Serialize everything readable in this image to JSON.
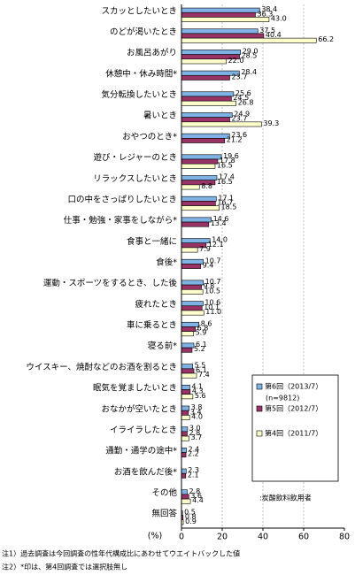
{
  "chart_data": {
    "type": "bar",
    "orientation": "horizontal",
    "categories": [
      "スカッとしたいとき",
      "のどが渇いたとき",
      "お風呂あがり",
      "休憩中・休み時間*",
      "気分転換したいとき",
      "暑いとき",
      "おやつのとき*",
      "遊び・レジャーのとき",
      "リラックスしたいとき",
      "口の中をさっぱりしたいとき",
      "仕事・勉強・家事をしながら*",
      "食事と一緒に",
      "食後*",
      "運動・スポーツをするとき、した後",
      "疲れたとき",
      "車に乗るとき",
      "寝る前*",
      "ウイスキー、焼酎などのお酒を割るとき",
      "眠気を覚ましたいとき",
      "おなかが空いたとき",
      "イライラしたとき",
      "通勤・通学の途中*",
      "お酒を飲んだ後*",
      "その他",
      "無回答"
    ],
    "series": [
      {
        "name": "第6回（2013/7）",
        "color": "#7fb2e5",
        "values": [
          38.4,
          37.5,
          29.0,
          28.4,
          25.6,
          24.9,
          23.6,
          19.6,
          17.4,
          17.1,
          14.6,
          14.0,
          10.7,
          10.7,
          10.6,
          8.6,
          6.1,
          5.5,
          4.1,
          3.8,
          3.0,
          2.4,
          2.3,
          2.8,
          0.5
        ],
        "value_labels": [
          "38.4",
          "37.5",
          "29.0",
          "28.4",
          "25.6",
          "24.9",
          "23.6",
          "19.6",
          "17.4",
          "17.1",
          "14.6",
          "14.0",
          "10.7",
          "10.7",
          "10.6",
          "8.6",
          "6.1",
          "5.5",
          "4.1",
          "3.8",
          "3.0",
          "2.4",
          "2.3",
          "2.8",
          "0.5"
        ]
      },
      {
        "name": "第5回（2012/7）",
        "color": "#993366",
        "values": [
          36.3,
          40.4,
          28.5,
          23.7,
          24.5,
          23.7,
          21.2,
          17.8,
          16.5,
          16.7,
          13.4,
          12.1,
          9.4,
          9.8,
          10.1,
          6.8,
          5.2,
          6.1,
          4.3,
          3.4,
          2.8,
          2.2,
          2.1,
          3.6,
          0.8
        ],
        "value_labels": [
          "36.3",
          "40.4",
          "28.5",
          "23.7",
          "24.5",
          "23.7",
          "21.2",
          "17.8",
          "16.5",
          "16.7",
          "13.4",
          "12.1",
          "9.4",
          "9.8",
          "10.1",
          "6.8",
          "5.2",
          "6.1",
          "4.3",
          "3.4",
          "2.8",
          "2.2",
          "2.1",
          "3.6",
          "0.8"
        ]
      },
      {
        "name": "第4回（2011/7）",
        "color": "#ffffcc",
        "values": [
          43.0,
          66.2,
          22.0,
          null,
          26.8,
          39.3,
          null,
          16.5,
          8.8,
          18.5,
          null,
          7.9,
          null,
          10.5,
          11.0,
          5.9,
          null,
          7.4,
          5.6,
          4.0,
          3.7,
          null,
          null,
          4.4,
          0.9
        ],
        "value_labels": [
          "43.0",
          "66.2",
          "22.0",
          null,
          "26.8",
          "39.3",
          null,
          "16.5",
          "8.8",
          "18.5",
          null,
          "7.9",
          null,
          "10.5",
          "11.0",
          "5.9",
          null,
          "7.4",
          "5.6",
          "4.0",
          "3.7",
          null,
          null,
          "4.4",
          "0.9"
        ]
      }
    ],
    "legend_note": "(n=9812)",
    "base_note": ":炭酸飲料飲用者",
    "xlabel": "(%)",
    "xlim": [
      0,
      80
    ],
    "xticks": [
      0,
      20,
      40,
      60,
      80
    ],
    "grid": true,
    "footnotes": [
      "注1）過去調査は今回調査の性年代構成比にあわせてウエイトバックした値",
      "注2）*印は、第4回調査では選択肢無し"
    ]
  }
}
